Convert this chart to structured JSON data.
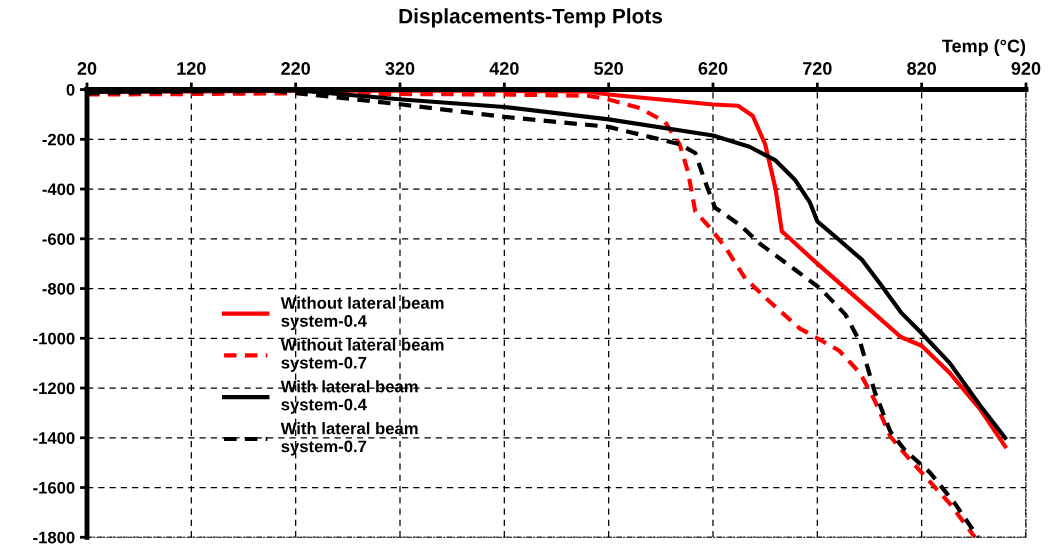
{
  "chart_data": {
    "type": "line",
    "title": "Displacements-Temp Plots",
    "xlabel": "Temp (°C)",
    "xlim": [
      20,
      920
    ],
    "xticks": [
      20,
      120,
      220,
      320,
      420,
      520,
      620,
      720,
      820,
      920
    ],
    "ylim": [
      -1800,
      0
    ],
    "yticks": [
      -1800,
      -1600,
      -1400,
      -1200,
      -1000,
      -800,
      -600,
      -400,
      -200,
      0
    ],
    "grid": true,
    "legend": "left",
    "series": [
      {
        "name": "Without lateral beam\nsystem-0.4",
        "color": "#ff0000",
        "line_style": "solid",
        "x": [
          20,
          120,
          220,
          320,
          420,
          500,
          520,
          620,
          644,
          658,
          670,
          680,
          686,
          694,
          703,
          720,
          773,
          800,
          820,
          847,
          876,
          900
        ],
        "values": [
          -10,
          -8,
          -5,
          -5,
          -5,
          -8,
          -20,
          -60,
          -65,
          -105,
          -220,
          -400,
          -570,
          -600,
          -635,
          -700,
          -895,
          -995,
          -1030,
          -1140,
          -1285,
          -1435
        ]
      },
      {
        "name": "Without lateral beam\nsystem-0.7",
        "color": "#ff0000",
        "line_style": "dashed",
        "x": [
          20,
          120,
          220,
          320,
          420,
          500,
          520,
          550,
          574,
          588,
          596,
          603,
          617,
          632,
          651,
          675,
          703,
          720,
          741,
          761,
          775,
          790,
          804,
          820,
          847,
          871
        ],
        "values": [
          -20,
          -18,
          -15,
          -18,
          -20,
          -25,
          -40,
          -75,
          -130,
          -220,
          -330,
          -490,
          -555,
          -635,
          -760,
          -855,
          -960,
          -1000,
          -1050,
          -1140,
          -1250,
          -1395,
          -1465,
          -1540,
          -1665,
          -1800
        ]
      },
      {
        "name": "With lateral beam\nsystem-0.4",
        "color": "#000000",
        "line_style": "solid",
        "x": [
          20,
          120,
          220,
          322,
          420,
          520,
          620,
          655,
          680,
          699,
          713,
          720,
          741,
          763,
          780,
          801,
          820,
          847,
          876,
          900
        ],
        "values": [
          -10,
          -5,
          -3,
          -40,
          -70,
          -120,
          -185,
          -230,
          -285,
          -365,
          -455,
          -530,
          -605,
          -685,
          -780,
          -900,
          -980,
          -1100,
          -1270,
          -1400
        ]
      },
      {
        "name": "With lateral beam\nsystem-0.7",
        "color": "#000000",
        "line_style": "dashed",
        "x": [
          20,
          120,
          200,
          322,
          420,
          520,
          588,
          603,
          612,
          622,
          646,
          665,
          694,
          723,
          747,
          761,
          775,
          790,
          804,
          828,
          852,
          874
        ],
        "values": [
          -15,
          -8,
          -5,
          -60,
          -110,
          -150,
          -220,
          -255,
          -365,
          -475,
          -545,
          -620,
          -710,
          -800,
          -905,
          -1015,
          -1215,
          -1375,
          -1450,
          -1540,
          -1665,
          -1800
        ]
      }
    ]
  }
}
